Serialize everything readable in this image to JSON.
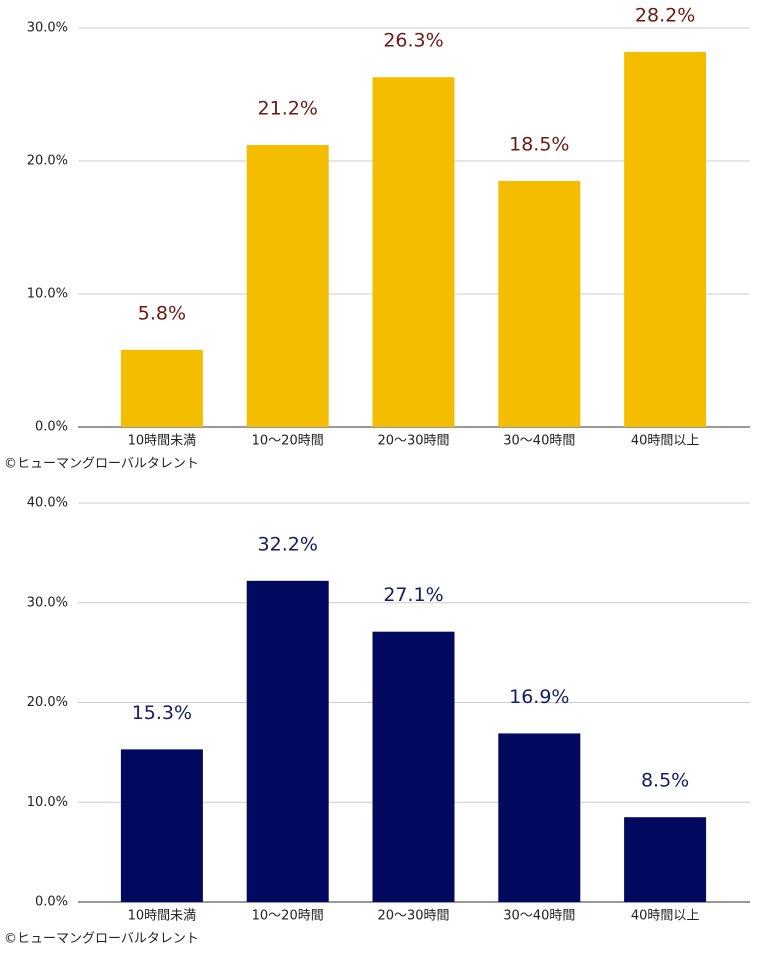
{
  "chart_data": [
    {
      "type": "bar",
      "categories": [
        "10時間未満",
        "10～20時間",
        "20～30時間",
        "30～40時間",
        "40時間以上"
      ],
      "values": [
        5.8,
        21.2,
        26.3,
        18.5,
        28.2
      ],
      "value_labels": [
        "5.8%",
        "21.2%",
        "26.3%",
        "18.5%",
        "28.2%"
      ],
      "color": "#f5bd00",
      "label_color": "#6e1a10",
      "ylim": [
        0,
        30
      ],
      "yticks": [
        {
          "value": 0,
          "label": "0.0%"
        },
        {
          "value": 10,
          "label": "10.0%"
        },
        {
          "value": 20,
          "label": "20.0%"
        },
        {
          "value": 30,
          "label": "30.0%"
        }
      ],
      "grid": true,
      "credit": "©ヒューマングローバルタレント"
    },
    {
      "type": "bar",
      "categories": [
        "10時間未満",
        "10～20時間",
        "20～30時間",
        "30～40時間",
        "40時間以上"
      ],
      "values": [
        15.3,
        32.2,
        27.1,
        16.9,
        8.5
      ],
      "value_labels": [
        "15.3%",
        "32.2%",
        "27.1%",
        "16.9%",
        "8.5%"
      ],
      "color": "#03095e",
      "label_color": "#141c64",
      "ylim": [
        0,
        40
      ],
      "yticks": [
        {
          "value": 0,
          "label": "0.0%"
        },
        {
          "value": 10,
          "label": "10.0%"
        },
        {
          "value": 20,
          "label": "20.0%"
        },
        {
          "value": 30,
          "label": "30.0%"
        },
        {
          "value": 40,
          "label": "40.0%"
        }
      ],
      "grid": true,
      "credit": "©ヒューマングローバルタレント"
    }
  ]
}
